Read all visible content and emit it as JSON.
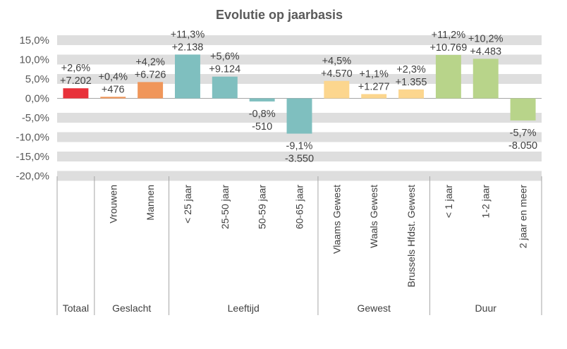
{
  "chart_data": {
    "type": "bar",
    "title": "Evolutie op jaarbasis",
    "xlabel": "",
    "ylabel": "",
    "ylim": [
      -20,
      15
    ],
    "yticks": [
      "15,0%",
      "10,0%",
      "5,0%",
      "0,0%",
      "-5,0%",
      "-10,0%",
      "-15,0%",
      "-20,0%"
    ],
    "ytick_values": [
      15,
      10,
      5,
      0,
      -5,
      -10,
      -15,
      -20
    ],
    "grid": "alternating horizontal bands",
    "categories": [
      "",
      "Vrouwen",
      "Mannen",
      "< 25 jaar",
      "25-50 jaar",
      "50-59 jaar",
      "60-65 jaar",
      "Vlaams Gewest",
      "Waals Gewest",
      "Brussels Hfdst. Gewest",
      "< 1 jaar",
      "1-2 jaar",
      "2 jaar en meer"
    ],
    "values": [
      2.6,
      0.4,
      4.2,
      11.3,
      5.6,
      -0.8,
      -9.1,
      4.5,
      1.1,
      2.3,
      11.2,
      10.2,
      -5.7
    ],
    "pct_labels": [
      "+2,6%",
      "+0,4%",
      "+4,2%",
      "+11,3%",
      "+5,6%",
      "-0,8%",
      "-9,1%",
      "+4,5%",
      "+1,1%",
      "+2,3%",
      "+11,2%",
      "+10,2%",
      "-5,7%"
    ],
    "abs_labels": [
      "+7.202",
      "+476",
      "+6.726",
      "+2.138",
      "+9.124",
      "-510",
      "-3.550",
      "+4.570",
      "+1.277",
      "+1.355",
      "+10.769",
      "+4.483",
      "-8.050"
    ],
    "colors": [
      "#e8313a",
      "#f0965a",
      "#f0965a",
      "#7fbfbf",
      "#7fbfbf",
      "#7fbfbf",
      "#7fbfbf",
      "#fcd68e",
      "#fcd68e",
      "#fcd68e",
      "#b8d48a",
      "#b8d48a",
      "#b8d48a"
    ],
    "groups": [
      {
        "label": "Totaal",
        "start": 0,
        "end": 0
      },
      {
        "label": "Geslacht",
        "start": 1,
        "end": 2
      },
      {
        "label": "Leeftijd",
        "start": 3,
        "end": 6
      },
      {
        "label": "Gewest",
        "start": 7,
        "end": 9
      },
      {
        "label": "Duur",
        "start": 10,
        "end": 12
      }
    ]
  }
}
